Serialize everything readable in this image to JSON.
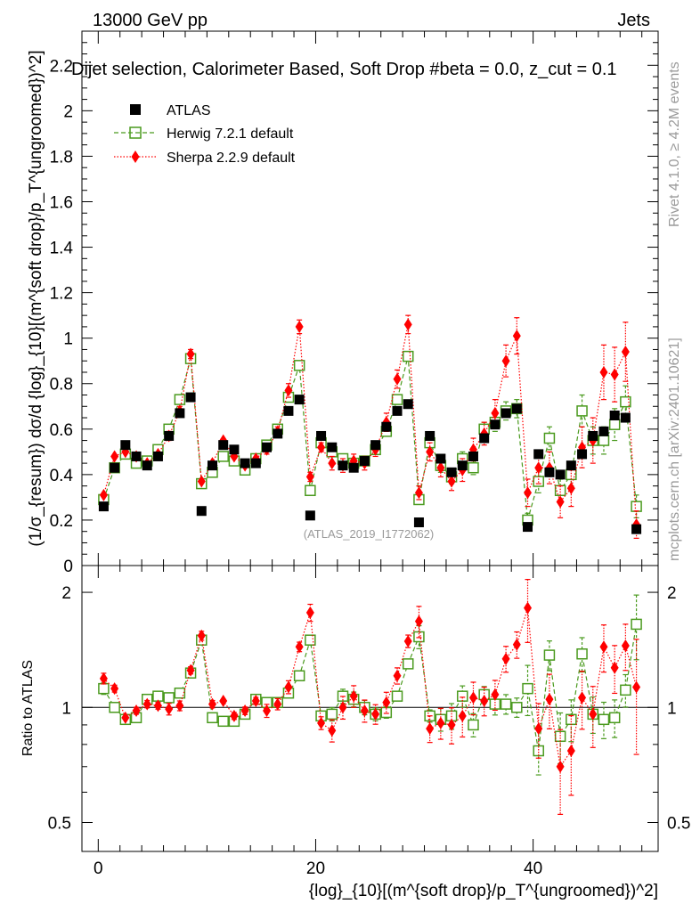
{
  "header": {
    "energy_label": "13000 GeV pp",
    "category_label": "Jets",
    "selection_title": "Dijet selection, Calorimeter Based, Soft Drop #beta = 0.0, z_cut = 0.1",
    "side_label_top": "Rivet 4.1.0, ≥ 4.2M events",
    "side_label_bottom": "mcplots.cern.ch [arXiv:2401.10621]",
    "analysis_watermark": "(ATLAS_2019_I1772062)"
  },
  "legend": {
    "atlas": "ATLAS",
    "herwig": "Herwig 7.2.1 default",
    "sherpa": "Sherpa 2.2.9 default"
  },
  "axes": {
    "main_ylabel": "(1/σ_{resum}) dσ/d {log}_{10}[(m^{soft drop}/p_T^{ungroomed})^2]",
    "ratio_ylabel": "Ratio to ATLAS",
    "xlabel": "{log}_{10}[(m^{soft drop}/p_T^{ungroomed})^2]"
  },
  "colors": {
    "atlas": "#000000",
    "herwig": "#4a9a1e",
    "sherpa": "#ff0000"
  },
  "chart_data": {
    "type": "scatter",
    "x": [
      0.5,
      1.5,
      2.5,
      3.5,
      4.5,
      5.5,
      6.5,
      7.5,
      8.5,
      9.5,
      10.5,
      11.5,
      12.5,
      13.5,
      14.5,
      15.5,
      16.5,
      17.5,
      18.5,
      19.5,
      20.5,
      21.5,
      22.5,
      23.5,
      24.5,
      25.5,
      26.5,
      27.5,
      28.5,
      29.5,
      30.5,
      31.5,
      32.5,
      33.5,
      34.5,
      35.5,
      36.5,
      37.5,
      38.5,
      39.5,
      40.5,
      41.5,
      42.5,
      43.5,
      44.5,
      45.5,
      46.5,
      47.5,
      48.5,
      49.5
    ],
    "xlim": [
      -1.5,
      51.5
    ],
    "main_ylim": [
      0,
      2.35
    ],
    "main_yticks": [
      0,
      0.2,
      0.4,
      0.6,
      0.8,
      1,
      1.2,
      1.4,
      1.6,
      1.8,
      2,
      2.2
    ],
    "ratio_ylim": [
      0.42,
      2.35
    ],
    "ratio_yticks": [
      0.5,
      1,
      2
    ],
    "x_ticks": [
      0,
      20,
      40
    ],
    "series": [
      {
        "name": "ATLAS",
        "values": [
          0.26,
          0.43,
          0.53,
          0.48,
          0.44,
          0.48,
          0.57,
          0.67,
          0.74,
          0.24,
          0.44,
          0.53,
          0.51,
          0.45,
          0.45,
          0.52,
          0.58,
          0.68,
          0.73,
          0.22,
          0.57,
          0.52,
          0.44,
          0.43,
          0.46,
          0.53,
          0.61,
          0.68,
          0.71,
          0.19,
          0.57,
          0.47,
          0.41,
          0.44,
          0.48,
          0.56,
          0.62,
          0.67,
          0.69,
          0.17,
          0.49,
          0.41,
          0.4,
          0.44,
          0.49,
          0.57,
          0.59,
          0.66,
          0.65,
          0.16
        ],
        "errors": [
          0.01,
          0.01,
          0.01,
          0.01,
          0.01,
          0.01,
          0.01,
          0.01,
          0.01,
          0.01,
          0.01,
          0.01,
          0.01,
          0.01,
          0.01,
          0.01,
          0.01,
          0.01,
          0.01,
          0.01,
          0.01,
          0.01,
          0.01,
          0.01,
          0.01,
          0.01,
          0.01,
          0.01,
          0.01,
          0.01,
          0.01,
          0.01,
          0.01,
          0.01,
          0.01,
          0.01,
          0.01,
          0.01,
          0.01,
          0.01,
          0.01,
          0.01,
          0.01,
          0.01,
          0.01,
          0.01,
          0.01,
          0.01,
          0.01,
          0.01
        ]
      },
      {
        "name": "Herwig 7.2.1 default",
        "values": [
          0.29,
          0.43,
          0.49,
          0.45,
          0.46,
          0.51,
          0.6,
          0.73,
          0.91,
          0.36,
          0.41,
          0.48,
          0.46,
          0.42,
          0.47,
          0.53,
          0.6,
          0.74,
          0.88,
          0.33,
          0.54,
          0.5,
          0.47,
          0.45,
          0.46,
          0.51,
          0.59,
          0.73,
          0.92,
          0.29,
          0.54,
          0.44,
          0.39,
          0.47,
          0.43,
          0.6,
          0.63,
          0.68,
          0.69,
          0.2,
          0.37,
          0.56,
          0.33,
          0.4,
          0.68,
          0.55,
          0.55,
          0.62,
          0.72,
          0.26
        ],
        "errors": [
          0.01,
          0.01,
          0.01,
          0.01,
          0.01,
          0.01,
          0.01,
          0.01,
          0.01,
          0.01,
          0.01,
          0.01,
          0.01,
          0.01,
          0.01,
          0.01,
          0.01,
          0.01,
          0.01,
          0.01,
          0.01,
          0.02,
          0.02,
          0.02,
          0.02,
          0.02,
          0.02,
          0.02,
          0.02,
          0.02,
          0.02,
          0.03,
          0.03,
          0.03,
          0.03,
          0.03,
          0.04,
          0.04,
          0.04,
          0.03,
          0.05,
          0.05,
          0.05,
          0.05,
          0.07,
          0.06,
          0.06,
          0.07,
          0.07,
          0.05
        ]
      },
      {
        "name": "Sherpa 2.2.9 default",
        "values": [
          0.31,
          0.48,
          0.5,
          0.48,
          0.45,
          0.49,
          0.57,
          0.68,
          0.93,
          0.37,
          0.45,
          0.55,
          0.48,
          0.44,
          0.47,
          0.51,
          0.59,
          0.77,
          1.05,
          0.39,
          0.52,
          0.45,
          0.44,
          0.46,
          0.45,
          0.51,
          0.63,
          0.82,
          1.06,
          0.32,
          0.5,
          0.43,
          0.37,
          0.42,
          0.51,
          0.58,
          0.67,
          0.9,
          1.01,
          0.32,
          0.43,
          0.43,
          0.28,
          0.34,
          0.52,
          0.55,
          0.85,
          0.84,
          0.94,
          0.18
        ],
        "errors": [
          0.01,
          0.01,
          0.01,
          0.01,
          0.01,
          0.01,
          0.02,
          0.02,
          0.02,
          0.01,
          0.01,
          0.01,
          0.01,
          0.01,
          0.01,
          0.02,
          0.02,
          0.03,
          0.03,
          0.02,
          0.02,
          0.03,
          0.03,
          0.03,
          0.03,
          0.03,
          0.04,
          0.04,
          0.04,
          0.03,
          0.04,
          0.04,
          0.04,
          0.05,
          0.05,
          0.05,
          0.06,
          0.07,
          0.08,
          0.06,
          0.07,
          0.07,
          0.07,
          0.08,
          0.09,
          0.1,
          0.12,
          0.12,
          0.13,
          0.06
        ]
      }
    ],
    "ratio_series": [
      {
        "name": "Herwig 7.2.1 default",
        "values": [
          1.12,
          1.0,
          0.93,
          0.94,
          1.05,
          1.07,
          1.06,
          1.09,
          1.23,
          1.5,
          0.94,
          0.92,
          0.92,
          0.96,
          1.05,
          1.03,
          1.03,
          1.09,
          1.21,
          1.5,
          0.95,
          0.96,
          1.07,
          1.05,
          1.0,
          0.96,
          0.97,
          1.07,
          1.3,
          1.53,
          0.95,
          0.93,
          0.95,
          1.07,
          0.9,
          1.08,
          1.02,
          1.02,
          1.0,
          1.12,
          0.77,
          1.37,
          0.84,
          0.93,
          1.38,
          0.96,
          0.93,
          0.94,
          1.11,
          1.65
        ]
      },
      {
        "name": "Sherpa 2.2.9 default",
        "values": [
          1.19,
          1.12,
          0.94,
          0.98,
          1.02,
          1.01,
          0.99,
          1.01,
          1.25,
          1.54,
          1.02,
          1.04,
          0.95,
          0.98,
          1.04,
          0.98,
          1.02,
          1.13,
          1.44,
          1.77,
          0.91,
          0.87,
          1.0,
          1.07,
          0.98,
          0.96,
          1.03,
          1.21,
          1.49,
          1.68,
          0.88,
          0.91,
          0.9,
          0.95,
          1.06,
          1.04,
          1.08,
          1.34,
          1.46,
          1.82,
          0.88,
          1.05,
          0.7,
          0.77,
          1.06,
          0.96,
          1.44,
          1.27,
          1.45,
          1.13
        ]
      }
    ]
  }
}
